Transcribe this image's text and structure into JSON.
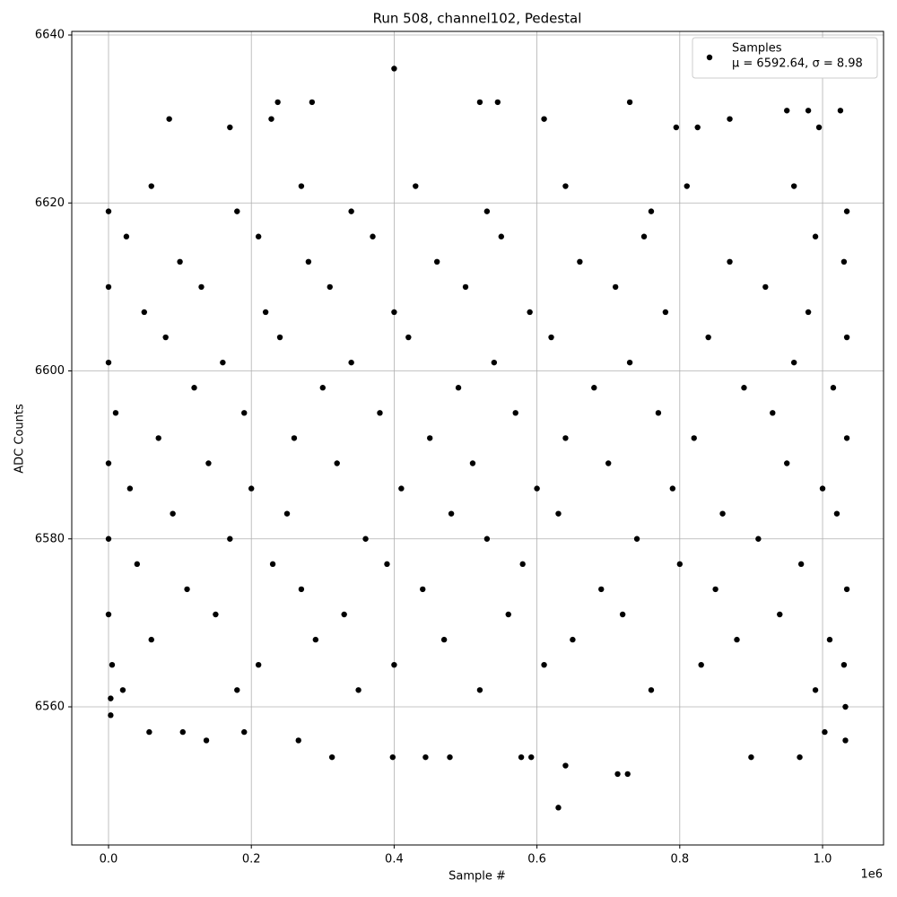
{
  "chart_data": {
    "type": "scatter",
    "title": "Run 508, channel102, Pedestal",
    "x_label": "Sample #",
    "y_label": "ADC Counts",
    "x_offset_label": "1e6",
    "xlim": [
      -51500,
      1085400
    ],
    "ylim": [
      6543.55,
      6640.43
    ],
    "xticks": [
      {
        "value": 0,
        "label": "0.0"
      },
      {
        "value": 200000,
        "label": "0.2"
      },
      {
        "value": 400000,
        "label": "0.4"
      },
      {
        "value": 600000,
        "label": "0.6"
      },
      {
        "value": 800000,
        "label": "0.8"
      },
      {
        "value": 1000000,
        "label": "1.0"
      }
    ],
    "yticks": [
      6560,
      6580,
      6600,
      6620,
      6640
    ],
    "grid": true,
    "legend_position": "upper right",
    "legend_stats": "μ = 6592.64, σ = 8.98",
    "series": [
      {
        "name": "Samples",
        "color": "#000000",
        "x": [
          400000,
          630000,
          640000,
          713000,
          727000,
          520000,
          545000,
          730000,
          237000,
          285000,
          950000,
          980000,
          1025000,
          85000,
          228000,
          610000,
          870000,
          313000,
          398000,
          444000,
          478000,
          578000,
          592000,
          900000,
          968000,
          137000,
          266000,
          1032000,
          57000,
          190000,
          104000,
          1003000,
          3000,
          3000,
          1032000,
          170000,
          795000,
          825000,
          995000,
          20000,
          180000,
          350000,
          520000,
          760000,
          990000,
          5000,
          210000,
          400000,
          610000,
          830000,
          1030000,
          60000,
          290000,
          470000,
          650000,
          880000,
          1010000,
          0,
          150000,
          330000,
          560000,
          720000,
          940000,
          110000,
          270000,
          440000,
          690000,
          850000,
          1034000,
          40000,
          230000,
          390000,
          580000,
          800000,
          970000,
          0,
          170000,
          360000,
          530000,
          740000,
          910000,
          90000,
          250000,
          480000,
          630000,
          860000,
          1020000,
          30000,
          200000,
          410000,
          600000,
          790000,
          1000000,
          0,
          140000,
          320000,
          510000,
          700000,
          950000,
          70000,
          260000,
          450000,
          640000,
          820000,
          1034000,
          10000,
          190000,
          380000,
          570000,
          770000,
          930000,
          120000,
          300000,
          490000,
          680000,
          890000,
          1015000,
          0,
          160000,
          340000,
          540000,
          730000,
          960000,
          80000,
          240000,
          420000,
          620000,
          840000,
          1034000,
          50000,
          220000,
          400000,
          590000,
          780000,
          980000,
          0,
          130000,
          310000,
          500000,
          710000,
          920000,
          100000,
          280000,
          460000,
          660000,
          870000,
          1030000,
          25000,
          210000,
          370000,
          550000,
          750000,
          990000,
          0,
          180000,
          340000,
          530000,
          760000,
          1034000,
          60000,
          270000,
          430000,
          640000,
          810000,
          960000
        ],
        "values": [
          6636,
          6548,
          6553,
          6552,
          6552,
          6632,
          6632,
          6632,
          6632,
          6632,
          6631,
          6631,
          6631,
          6630,
          6630,
          6630,
          6630,
          6554,
          6554,
          6554,
          6554,
          6554,
          6554,
          6554,
          6554,
          6556,
          6556,
          6556,
          6557,
          6557,
          6557,
          6557,
          6559,
          6561,
          6560,
          6629,
          6629,
          6629,
          6629,
          6562,
          6562,
          6562,
          6562,
          6562,
          6562,
          6565,
          6565,
          6565,
          6565,
          6565,
          6565,
          6568,
          6568,
          6568,
          6568,
          6568,
          6568,
          6571,
          6571,
          6571,
          6571,
          6571,
          6571,
          6574,
          6574,
          6574,
          6574,
          6574,
          6574,
          6577,
          6577,
          6577,
          6577,
          6577,
          6577,
          6580,
          6580,
          6580,
          6580,
          6580,
          6580,
          6583,
          6583,
          6583,
          6583,
          6583,
          6583,
          6586,
          6586,
          6586,
          6586,
          6586,
          6586,
          6589,
          6589,
          6589,
          6589,
          6589,
          6589,
          6592,
          6592,
          6592,
          6592,
          6592,
          6592,
          6595,
          6595,
          6595,
          6595,
          6595,
          6595,
          6598,
          6598,
          6598,
          6598,
          6598,
          6598,
          6601,
          6601,
          6601,
          6601,
          6601,
          6601,
          6604,
          6604,
          6604,
          6604,
          6604,
          6604,
          6607,
          6607,
          6607,
          6607,
          6607,
          6607,
          6610,
          6610,
          6610,
          6610,
          6610,
          6610,
          6613,
          6613,
          6613,
          6613,
          6613,
          6613,
          6616,
          6616,
          6616,
          6616,
          6616,
          6616,
          6619,
          6619,
          6619,
          6619,
          6619,
          6619,
          6622,
          6622,
          6622,
          6622,
          6622,
          6622
        ]
      }
    ]
  }
}
